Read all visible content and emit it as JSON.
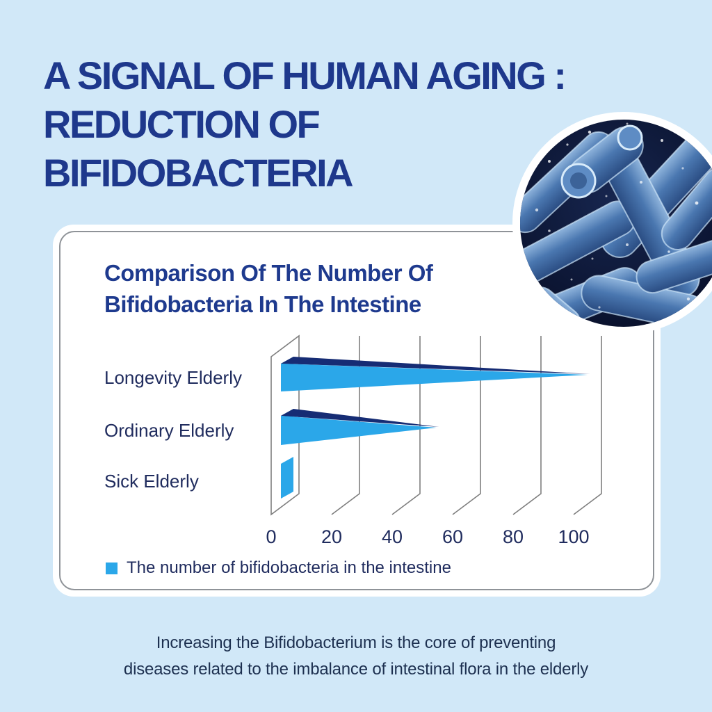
{
  "page": {
    "title": "A SIGNAL OF HUMAN AGING :\nREDUCTION OF\nBIFIDOBACTERIA",
    "footer": "Increasing  the Bifidobacterium is the core of preventing\ndiseases related to the imbalance of intestinal flora in the elderly",
    "background_color": "#d1e8f8",
    "title_color": "#1e388c"
  },
  "card": {
    "title": "Comparison Of The Number Of\nBifidobacteria In The Intestine"
  },
  "legend": {
    "label": "The number of bifidobacteria in the intestine",
    "swatch_color": "#2ba7e9"
  },
  "chart_data": {
    "type": "bar",
    "variant": "3d-horizontal-pyramid",
    "orientation": "horizontal",
    "title": "Comparison Of The Number Of Bifidobacteria In The Intestine",
    "categories": [
      "Longevity Elderly",
      "Ordinary Elderly",
      "Sick Elderly"
    ],
    "series": [
      {
        "name": "The number of bifidobacteria in the intestine",
        "values": [
          100,
          50,
          3
        ]
      }
    ],
    "x_ticks": [
      0,
      20,
      40,
      60,
      80,
      100
    ],
    "xlim": [
      0,
      110
    ],
    "grid": true,
    "legend_position": "bottom-left",
    "colors": {
      "bar_front": "#2ba7e9",
      "bar_top": "#162c74",
      "grid_line": "#7e7e7e",
      "label": "#202c5e"
    }
  }
}
